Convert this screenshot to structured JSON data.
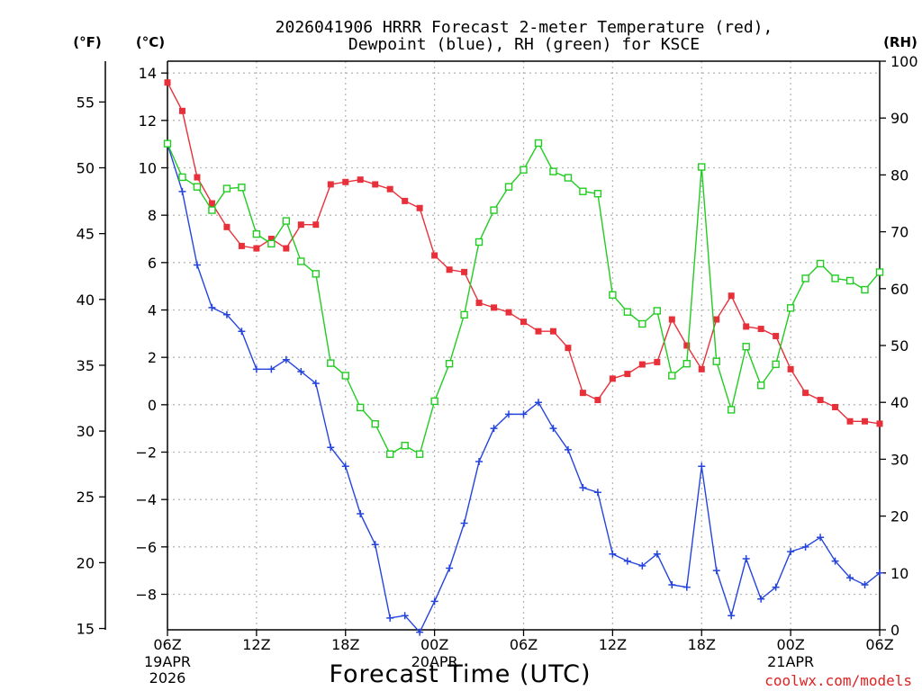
{
  "chart_data": {
    "type": "line",
    "title_line1": "2026041906 HRRR Forecast 2-meter Temperature (red),",
    "title_line2": "Dewpoint (blue), RH (green) for KSCE",
    "xlabel": "Forecast Time (UTC)",
    "watermark": "coolwx.com/models",
    "units": {
      "fahrenheit": "(°F)",
      "celsius": "(°C)",
      "rh": "(RH)"
    },
    "x_range_hours": [
      0,
      48
    ],
    "y_left_celsius_range": [
      -9.5,
      14.5
    ],
    "y_right_rh_range": [
      0,
      100
    ],
    "x_ticks": [
      {
        "hour": 0,
        "label": "06Z",
        "sub1": "19APR",
        "sub2": "2026"
      },
      {
        "hour": 6,
        "label": "12Z",
        "sub1": "",
        "sub2": ""
      },
      {
        "hour": 12,
        "label": "18Z",
        "sub1": "",
        "sub2": ""
      },
      {
        "hour": 18,
        "label": "00Z",
        "sub1": "20APR",
        "sub2": ""
      },
      {
        "hour": 24,
        "label": "06Z",
        "sub1": "",
        "sub2": ""
      },
      {
        "hour": 30,
        "label": "12Z",
        "sub1": "",
        "sub2": ""
      },
      {
        "hour": 36,
        "label": "18Z",
        "sub1": "",
        "sub2": ""
      },
      {
        "hour": 42,
        "label": "00Z",
        "sub1": "21APR",
        "sub2": ""
      },
      {
        "hour": 48,
        "label": "06Z",
        "sub1": "",
        "sub2": ""
      }
    ],
    "celsius_ticks": [
      14,
      12,
      10,
      8,
      6,
      4,
      2,
      0,
      -2,
      -4,
      -6,
      -8
    ],
    "fahrenheit_ticks": [
      55,
      50,
      45,
      40,
      35,
      30,
      25,
      20,
      15
    ],
    "rh_ticks": [
      100,
      90,
      80,
      70,
      60,
      50,
      40,
      30,
      20,
      10,
      0
    ],
    "series": [
      {
        "name": "Temperature",
        "unit": "C",
        "color": "#e8303a",
        "marker": "filled-square",
        "values": [
          13.6,
          12.4,
          9.6,
          8.5,
          7.5,
          6.7,
          6.6,
          7.0,
          6.6,
          7.6,
          7.6,
          9.3,
          9.4,
          9.5,
          9.3,
          9.1,
          8.6,
          8.3,
          6.3,
          5.7,
          5.6,
          4.3,
          4.1,
          3.9,
          3.5,
          3.1,
          3.1,
          2.4,
          0.5,
          0.2,
          1.1,
          1.3,
          1.7,
          1.8,
          3.6,
          2.5,
          1.5,
          3.6,
          4.6,
          3.3,
          3.2,
          2.9,
          1.5,
          0.5,
          0.2,
          -0.1,
          -0.7,
          -0.7,
          -0.8
        ]
      },
      {
        "name": "Dewpoint",
        "unit": "C",
        "color": "#2444dd",
        "marker": "plus",
        "values": [
          11.0,
          9.0,
          5.9,
          4.1,
          3.8,
          3.1,
          1.5,
          1.5,
          1.9,
          1.4,
          0.9,
          -1.8,
          -2.6,
          -4.6,
          -5.9,
          -9.0,
          -8.9,
          -9.6,
          -8.3,
          -6.9,
          -5.0,
          -2.4,
          -1.0,
          -0.4,
          -0.4,
          0.1,
          -1.0,
          -1.9,
          -3.5,
          -3.7,
          -6.3,
          -6.6,
          -6.8,
          -6.3,
          -7.6,
          -7.7,
          -2.6,
          -7.0,
          -8.9,
          -6.5,
          -8.2,
          -7.7,
          -6.2,
          -6.0,
          -5.6,
          -6.6,
          -7.3,
          -7.6,
          -7.1
        ]
      },
      {
        "name": "RH",
        "unit": "%",
        "color": "#22cc22",
        "marker": "open-square",
        "values": [
          85.5,
          79.6,
          77.9,
          73.8,
          77.6,
          77.8,
          69.6,
          67.9,
          71.9,
          64.8,
          62.6,
          46.9,
          44.7,
          39.1,
          36.2,
          30.9,
          32.4,
          30.9,
          40.2,
          46.8,
          55.4,
          68.2,
          73.8,
          77.9,
          80.9,
          85.6,
          80.6,
          79.5,
          77.1,
          76.7,
          58.9,
          55.9,
          53.8,
          56.1,
          44.7,
          46.8,
          81.4,
          47.2,
          38.7,
          49.8,
          43.0,
          46.7,
          56.6,
          61.8,
          64.4,
          61.8,
          61.4,
          59.8,
          62.9
        ]
      }
    ]
  }
}
